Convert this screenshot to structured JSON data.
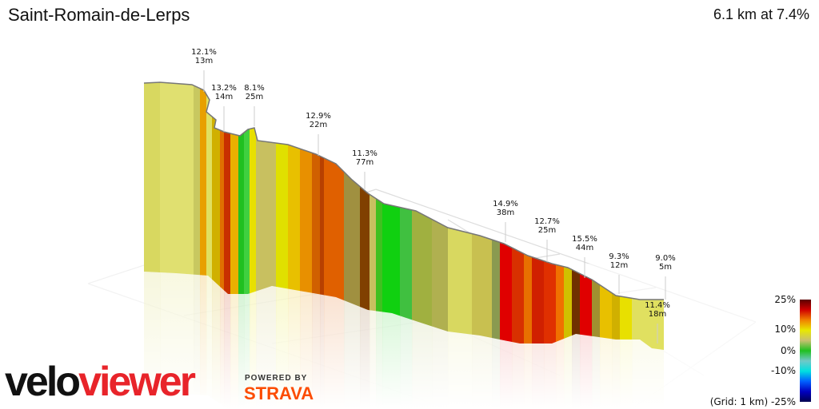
{
  "header": {
    "title": "Saint-Romain-de-Lerps",
    "summary": "6.1 km at 7.4%"
  },
  "chart_data": {
    "type": "area",
    "title": "Saint-Romain-de-Lerps",
    "distance_km": 6.1,
    "avg_grade_pct": 7.4,
    "annotations": [
      {
        "grade": "12.1%",
        "length": "13m"
      },
      {
        "grade": "13.2%",
        "length": "14m"
      },
      {
        "grade": "8.1%",
        "length": "25m"
      },
      {
        "grade": "12.9%",
        "length": "22m"
      },
      {
        "grade": "11.3%",
        "length": "77m"
      },
      {
        "grade": "14.9%",
        "length": "38m"
      },
      {
        "grade": "12.7%",
        "length": "25m"
      },
      {
        "grade": "15.5%",
        "length": "44m"
      },
      {
        "grade": "9.3%",
        "length": "12m"
      },
      {
        "grade": "9.0%",
        "length": "5m"
      },
      {
        "grade": "11.4%",
        "length": "18m"
      }
    ],
    "legend": {
      "ticks": [
        "25%",
        "10%",
        "0%",
        "-10%",
        "-25%"
      ],
      "grid_label": "(Grid: 1 km)",
      "colors": [
        "#5a0000",
        "#d00000",
        "#f08000",
        "#e8e800",
        "#c8c070",
        "#20c020",
        "#70c8c8",
        "#00e0e0",
        "#0060ff",
        "#0000c0",
        "#000050"
      ]
    }
  },
  "branding": {
    "logo_part1": "velo",
    "logo_part2": "viewer",
    "powered": "POWERED BY",
    "strava": "STRAVA"
  }
}
